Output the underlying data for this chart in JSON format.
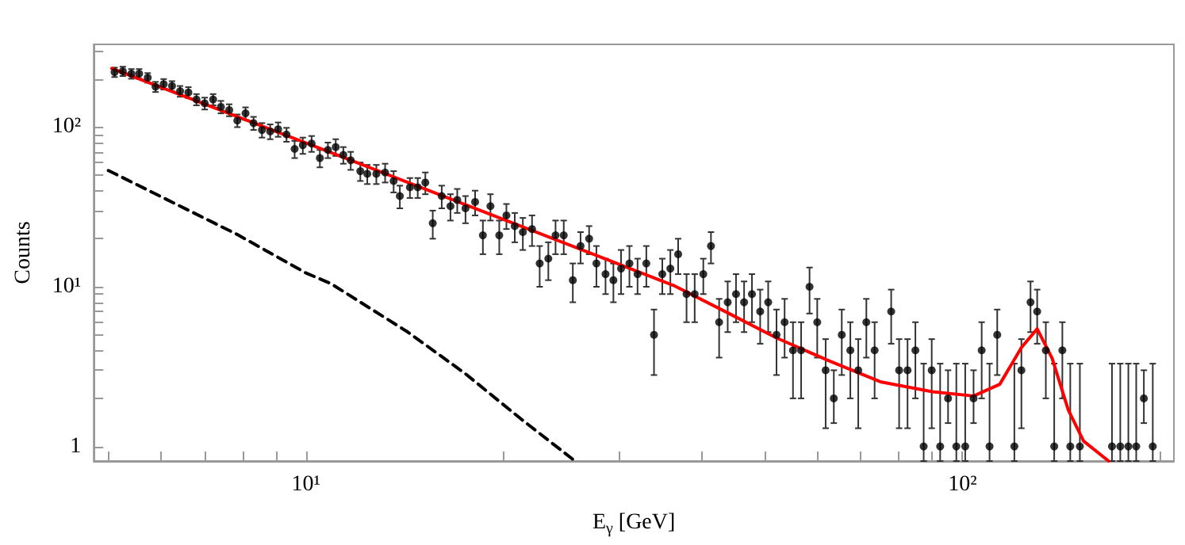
{
  "chart_data": {
    "type": "scatter",
    "xlabel": "E$_{γ}$ [GeV]",
    "ylabel": "Counts",
    "log": "xy",
    "grid": false,
    "marker": "circle",
    "xlim": [
      4.75,
      210
    ],
    "ylim": [
      0.81,
      330
    ],
    "xticks": [
      {
        "value": 5,
        "label": null
      },
      {
        "value": 6,
        "label": null
      },
      {
        "value": 7,
        "label": null
      },
      {
        "value": 8,
        "label": null
      },
      {
        "value": 9,
        "label": null
      },
      {
        "value": 10,
        "label": "10¹"
      },
      {
        "value": 20,
        "label": null
      },
      {
        "value": 30,
        "label": null
      },
      {
        "value": 40,
        "label": null
      },
      {
        "value": 50,
        "label": null
      },
      {
        "value": 60,
        "label": null
      },
      {
        "value": 70,
        "label": null
      },
      {
        "value": 80,
        "label": null
      },
      {
        "value": 90,
        "label": null
      },
      {
        "value": 100,
        "label": "10²"
      },
      {
        "value": 200,
        "label": null
      }
    ],
    "yticks": [
      1,
      {
        "value": 2,
        "label": null
      },
      {
        "value": 3,
        "label": null
      },
      {
        "value": 4,
        "label": null
      },
      {
        "value": 5,
        "label": null
      },
      {
        "value": 6,
        "label": null
      },
      {
        "value": 7,
        "label": null
      },
      {
        "value": 8,
        "label": null
      },
      {
        "value": 9,
        "label": null
      },
      {
        "value": 10,
        "label": "10¹"
      },
      {
        "value": 20,
        "label": null
      },
      {
        "value": 30,
        "label": null
      },
      {
        "value": 40,
        "label": null
      },
      {
        "value": 50,
        "label": null
      },
      {
        "value": 60,
        "label": null
      },
      {
        "value": 70,
        "label": null
      },
      {
        "value": 80,
        "label": null
      },
      {
        "value": 90,
        "label": null
      },
      {
        "value": 100,
        "label": "10²"
      },
      {
        "value": 200,
        "label": null
      },
      {
        "value": 300,
        "label": null
      }
    ],
    "series": [
      {
        "color": "#000000",
        "x": [
          5.11,
          5.26,
          5.42,
          5.57,
          5.74,
          5.9,
          6.07,
          6.25,
          6.43,
          6.62,
          6.81,
          7.01,
          7.22,
          7.42,
          7.64,
          7.86,
          8.09,
          8.32,
          8.57,
          8.82,
          9.07,
          9.34,
          9.61,
          9.89,
          10.2,
          10.5,
          10.8,
          11.1,
          11.4,
          11.7,
          12.1,
          12.4,
          12.8,
          13.2,
          13.6,
          13.9,
          14.4,
          14.8,
          15.2,
          15.6,
          16.1,
          16.6,
          17.0,
          17.5,
          18.1,
          18.6,
          19.1,
          19.7,
          20.2,
          20.8,
          21.4,
          22.1,
          22.7,
          23.4,
          24.0,
          24.7,
          25.5,
          26.2,
          27.0,
          27.7,
          28.6,
          29.4,
          30.2,
          31.1,
          32.0,
          33.0,
          33.9,
          34.9,
          35.9,
          36.9,
          38.0,
          39.1,
          40.3,
          41.4,
          42.6,
          43.9,
          45.2,
          46.5,
          47.8,
          49.2,
          50.6,
          52.1,
          53.6,
          55.2,
          56.8,
          58.5,
          60.1,
          61.9,
          63.7,
          65.5,
          67.5,
          69.4,
          71.4,
          73.5,
          77.9,
          80.1,
          82.5,
          84.8,
          87.3,
          89.8,
          92.5,
          95.1,
          97.9,
          101,
          104,
          107,
          110,
          113,
          120,
          123,
          127,
          130,
          134,
          138,
          142,
          146,
          151,
          169,
          174,
          179,
          184,
          189,
          195
        ],
        "values": [
          221,
          224,
          216,
          216,
          204,
          179,
          186,
          181,
          168,
          165,
          149,
          141,
          149,
          134,
          128,
          110,
          122,
          106,
          96,
          94,
          97,
          90,
          73,
          77,
          79,
          64,
          72,
          75,
          67,
          62,
          53,
          51,
          51,
          52,
          46,
          37,
          42,
          42,
          45,
          25,
          37,
          32,
          35,
          31,
          34,
          21,
          32,
          21,
          28,
          24,
          22,
          23,
          14,
          15,
          21,
          21,
          11,
          18,
          20,
          14,
          12,
          11,
          13,
          14,
          12,
          14,
          5,
          12,
          13,
          16,
          9,
          9,
          12,
          18,
          6,
          8,
          9,
          8,
          9,
          7,
          8,
          5,
          6,
          4,
          4,
          10,
          6,
          3,
          2,
          5,
          4,
          3,
          6,
          4,
          7,
          3,
          3,
          4,
          1,
          3,
          1,
          2,
          1,
          1,
          2,
          4,
          1,
          5,
          1,
          3,
          8,
          7,
          4,
          1,
          4,
          1,
          1,
          1,
          1,
          1,
          1,
          2,
          1
        ],
        "errors": [
          15,
          15,
          15,
          15,
          14,
          13,
          14,
          13,
          13,
          13,
          12,
          12,
          12,
          12,
          11,
          10,
          11,
          10,
          10,
          10,
          10,
          9,
          9,
          9,
          9,
          8,
          8,
          9,
          8,
          8,
          7,
          7,
          7,
          7,
          7,
          6,
          6,
          6,
          7,
          5,
          6,
          6,
          6,
          6,
          6,
          5,
          6,
          5,
          5,
          5,
          5,
          5,
          4,
          4,
          5,
          5,
          3,
          4,
          4,
          4,
          3,
          3,
          4,
          4,
          3,
          4,
          2.2,
          3,
          4,
          4,
          3,
          3,
          3,
          4,
          2.4,
          2.8,
          3,
          2.8,
          3,
          2.6,
          2.8,
          2.2,
          2.4,
          2,
          2,
          3.2,
          2.4,
          1.7,
          [
            1.4,
            3
          ],
          2.2,
          2,
          1.7,
          2.4,
          2,
          2.6,
          1.7,
          1.7,
          2,
          [
            0.81,
            3.3
          ],
          1.7,
          [
            0.81,
            3.3
          ],
          [
            1.4,
            3
          ],
          [
            0.81,
            3.3
          ],
          [
            0.81,
            3.3
          ],
          [
            1.4,
            3
          ],
          2,
          [
            0.81,
            3.3
          ],
          2.2,
          [
            0.81,
            3.3
          ],
          1.7,
          2.8,
          2.6,
          2,
          [
            0.81,
            3.3
          ],
          2,
          [
            0.81,
            3.3
          ],
          [
            0.81,
            3.3
          ],
          [
            0.81,
            3.3
          ],
          [
            0.81,
            3.3
          ],
          [
            0.81,
            3.3
          ],
          [
            0.81,
            3.3
          ],
          [
            1.4,
            3
          ],
          [
            0.81,
            3.3
          ]
        ]
      },
      {
        "type": "line",
        "color": "#ff0000",
        "marker": "none",
        "line_style": "solid",
        "x": [
          5.06,
          10.9,
          36.3,
          43.6,
          52,
          62.7,
          75,
          90,
          104,
          114,
          123,
          130,
          137,
          145,
          153,
          167
        ],
        "values": [
          233,
          69.5,
          10.2,
          6.97,
          4.8,
          3.43,
          2.54,
          2.2,
          2.07,
          2.45,
          4.16,
          5.45,
          3.56,
          1.69,
          1.08,
          0.81
        ]
      },
      {
        "type": "line",
        "color": "#000000",
        "marker": "none",
        "line_style": "dashed",
        "x": [
          5,
          7.85,
          10,
          10.9,
          14.3,
          17.5,
          21.2,
          25.7
        ],
        "values": [
          53.5,
          21.3,
          12.2,
          10.5,
          5.2,
          2.85,
          1.5,
          0.81
        ]
      }
    ]
  }
}
